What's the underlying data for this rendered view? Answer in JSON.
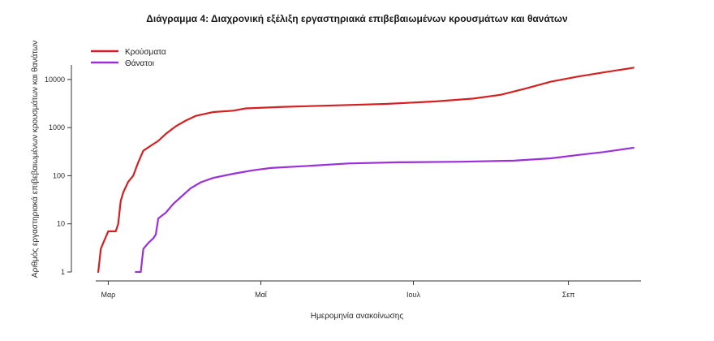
{
  "chart_data": {
    "type": "line",
    "title": "Διάγραμμα 4: Διαχρονική εξέλιξη εργαστηριακά επιβεβαιωμένων κρουσμάτων και θανάτων",
    "xlabel": "Ημερομηνία ανακοίνωσης",
    "ylabel": "Αριθμός εργαστηριακά επιβεβαιωμένων κρουσμάτων και θανάτων",
    "y_scale": "log",
    "ylim": [
      1,
      20000
    ],
    "y_ticks": [
      1,
      10,
      100,
      1000,
      10000
    ],
    "y_tick_labels": [
      "1",
      "10",
      "100",
      "1000",
      "10000"
    ],
    "xlim": [
      "2020-02-25",
      "2020-09-30"
    ],
    "x_ticks": [
      {
        "date": "2020-03-01",
        "label": "Μαρ"
      },
      {
        "date": "2020-05-01",
        "label": "Μαΐ"
      },
      {
        "date": "2020-07-01",
        "label": "Ιουλ"
      },
      {
        "date": "2020-09-01",
        "label": "Σεπ"
      }
    ],
    "grid": false,
    "legend_position": "top-left",
    "series": [
      {
        "name": "Κρούσματα",
        "color": "#d42020",
        "points": [
          [
            "2020-02-26",
            1
          ],
          [
            "2020-02-27",
            3
          ],
          [
            "2020-02-28",
            4
          ],
          [
            "2020-03-01",
            7
          ],
          [
            "2020-03-04",
            7
          ],
          [
            "2020-03-05",
            10
          ],
          [
            "2020-03-06",
            30
          ],
          [
            "2020-03-07",
            45
          ],
          [
            "2020-03-09",
            75
          ],
          [
            "2020-03-11",
            100
          ],
          [
            "2020-03-13",
            190
          ],
          [
            "2020-03-15",
            330
          ],
          [
            "2020-03-18",
            420
          ],
          [
            "2020-03-21",
            530
          ],
          [
            "2020-03-24",
            740
          ],
          [
            "2020-03-28",
            1060
          ],
          [
            "2020-04-01",
            1400
          ],
          [
            "2020-04-05",
            1750
          ],
          [
            "2020-04-12",
            2100
          ],
          [
            "2020-04-20",
            2250
          ],
          [
            "2020-04-25",
            2500
          ],
          [
            "2020-05-10",
            2700
          ],
          [
            "2020-06-01",
            2900
          ],
          [
            "2020-06-20",
            3100
          ],
          [
            "2020-07-10",
            3500
          ],
          [
            "2020-07-25",
            4000
          ],
          [
            "2020-08-05",
            4800
          ],
          [
            "2020-08-15",
            6500
          ],
          [
            "2020-08-25",
            9000
          ],
          [
            "2020-09-05",
            11500
          ],
          [
            "2020-09-15",
            14000
          ],
          [
            "2020-09-27",
            17500
          ]
        ]
      },
      {
        "name": "Θάνατοι",
        "color": "#9b30d9",
        "points": [
          [
            "2020-03-12",
            1
          ],
          [
            "2020-03-14",
            1
          ],
          [
            "2020-03-15",
            3
          ],
          [
            "2020-03-17",
            4
          ],
          [
            "2020-03-19",
            5
          ],
          [
            "2020-03-20",
            6
          ],
          [
            "2020-03-21",
            13
          ],
          [
            "2020-03-24",
            17
          ],
          [
            "2020-03-27",
            26
          ],
          [
            "2020-03-31",
            40
          ],
          [
            "2020-04-03",
            55
          ],
          [
            "2020-04-07",
            73
          ],
          [
            "2020-04-12",
            90
          ],
          [
            "2020-04-20",
            110
          ],
          [
            "2020-04-28",
            130
          ],
          [
            "2020-05-05",
            145
          ],
          [
            "2020-05-20",
            160
          ],
          [
            "2020-06-05",
            180
          ],
          [
            "2020-06-25",
            190
          ],
          [
            "2020-07-20",
            195
          ],
          [
            "2020-08-10",
            205
          ],
          [
            "2020-08-25",
            230
          ],
          [
            "2020-09-05",
            270
          ],
          [
            "2020-09-15",
            310
          ],
          [
            "2020-09-27",
            380
          ]
        ]
      }
    ]
  }
}
